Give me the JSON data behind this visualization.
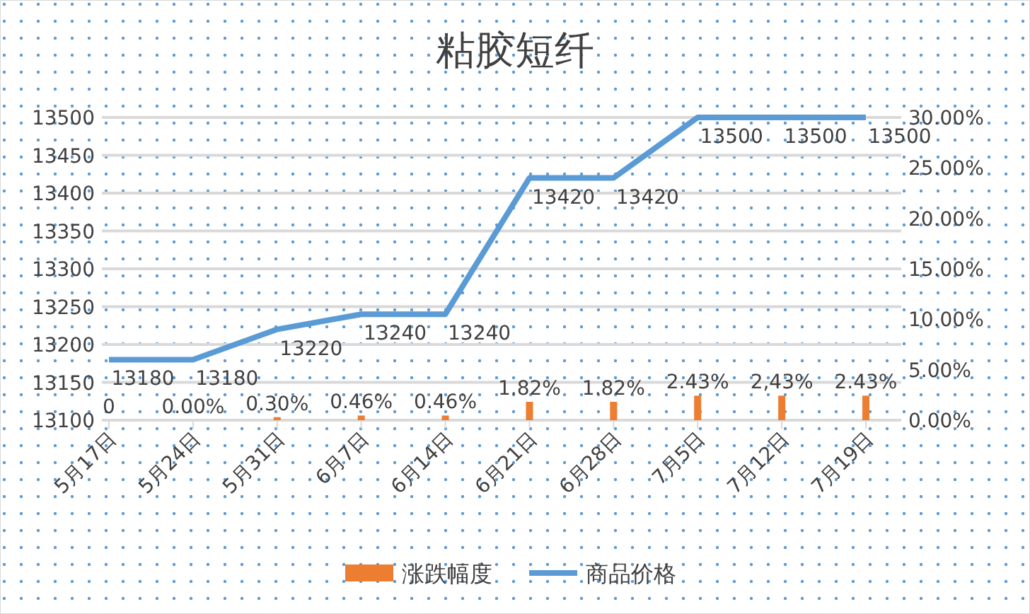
{
  "chart_data": {
    "type": "bar",
    "title": "粘胶短纤",
    "categories": [
      "5月17日",
      "5月24日",
      "5月31日",
      "6月7日",
      "6月14日",
      "6月21日",
      "6月28日",
      "7月5日",
      "7月12日",
      "7月19日"
    ],
    "series": [
      {
        "name": "涨跌幅度",
        "axis": "y2",
        "color": "#ed7d31",
        "values": [
          0,
          0,
          0.3,
          0.46,
          0.46,
          1.82,
          1.82,
          2.43,
          2.43,
          2.43
        ],
        "value_labels": [
          "0",
          "0.00%",
          "0.30%",
          "0.46%",
          "0.46%",
          "1.82%",
          "1.82%",
          "2.43%",
          "2,43%",
          "2.43%"
        ]
      },
      {
        "name": "商品价格",
        "type": "line",
        "color": "#5b9bd5",
        "values": [
          13180,
          13180,
          13220,
          13240,
          13240,
          13420,
          13420,
          13500,
          13500,
          13500
        ],
        "data_labels": true
      }
    ],
    "ylim": [
      13100,
      13500
    ],
    "yticks": [
      13100,
      13150,
      13200,
      13250,
      13300,
      13350,
      13400,
      13450,
      13500
    ],
    "y2lim": [
      0,
      30
    ],
    "y2ticks": [
      {
        "value": 0,
        "label": "0.00%"
      },
      {
        "value": 5,
        "label": "5.00%"
      },
      {
        "value": 10,
        "label": "10.00%"
      },
      {
        "value": 15,
        "label": "15.00%"
      },
      {
        "value": 20,
        "label": "20.00%"
      },
      {
        "value": 25,
        "label": "25.00%"
      },
      {
        "value": 30,
        "label": "30.00%"
      }
    ],
    "grid": "y",
    "legend": "bottom",
    "marker": "none"
  }
}
